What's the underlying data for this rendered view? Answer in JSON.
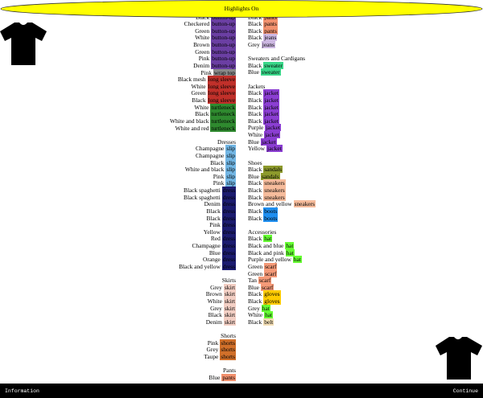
{
  "toggle": "Highlights On",
  "highlight_colors": {
    "button-up": "#6b3fa3",
    "wrap top": "#8a8a8a",
    "long sleeve": "#c0302a",
    "turtleneck": "#2f8a2f",
    "slip": "#72b6e4",
    "dress": "#1c1c70",
    "skirt": "#f3cfc4",
    "shorts": "#d1702a",
    "pants": "#f2916e",
    "jeans": "#cdb8e2",
    "sweater": "#3ad88a",
    "jacket": "#8b3ed2",
    "sandals": "#8d9a2c",
    "sneakers": "#f6bc9c",
    "boots": "#1f8ff0",
    "hat": "#66ff33",
    "scarf": "#f59a78",
    "gloves": "#ffcc00",
    "belt": "#f4dfb6"
  },
  "left_column": [
    {
      "items": [
        {
          "prefix": "Black",
          "highlight": "button-up"
        },
        {
          "prefix": "Checkered",
          "highlight": "button-up"
        },
        {
          "prefix": "Green",
          "highlight": "button-up"
        },
        {
          "prefix": "White",
          "highlight": "button-up"
        },
        {
          "prefix": "Brown",
          "highlight": "button-up"
        },
        {
          "prefix": "Green",
          "highlight": "button-up"
        },
        {
          "prefix": "Pink",
          "highlight": "button-up"
        },
        {
          "prefix": "Denim",
          "highlight": "button-up"
        },
        {
          "prefix": "Pink",
          "highlight": "wrap top"
        },
        {
          "prefix": "Black mesh",
          "highlight": "long sleeve"
        },
        {
          "prefix": "White",
          "highlight": "long sleeve"
        },
        {
          "prefix": "Green",
          "highlight": "long sleeve"
        },
        {
          "prefix": "Black",
          "highlight": "long sleeve"
        },
        {
          "prefix": "White",
          "highlight": "turtleneck"
        },
        {
          "prefix": "Black",
          "highlight": "turtleneck"
        },
        {
          "prefix": "White and black",
          "highlight": "turtleneck"
        },
        {
          "prefix": "White and red",
          "highlight": "turtleneck"
        }
      ]
    },
    {
      "header": "Dresses",
      "items": [
        {
          "prefix": "Champagne",
          "highlight": "slip"
        },
        {
          "prefix": "Champagne",
          "highlight": "slip"
        },
        {
          "prefix": "Black",
          "highlight": "slip"
        },
        {
          "prefix": "White and black",
          "highlight": "slip"
        },
        {
          "prefix": "Pink",
          "highlight": "slip"
        },
        {
          "prefix": "Pink",
          "highlight": "slip"
        },
        {
          "prefix": "Black spaghetti",
          "highlight": "dress"
        },
        {
          "prefix": "Black spaghetti",
          "highlight": "dress"
        },
        {
          "prefix": "Denim",
          "highlight": "dress"
        },
        {
          "prefix": "Black",
          "highlight": "dress"
        },
        {
          "prefix": "Black",
          "highlight": "dress"
        },
        {
          "prefix": "Pink",
          "highlight": "dress"
        },
        {
          "prefix": "Yellow",
          "highlight": "dress"
        },
        {
          "prefix": "Red",
          "highlight": "dress"
        },
        {
          "prefix": "Champagne",
          "highlight": "dress"
        },
        {
          "prefix": "Blue",
          "highlight": "dress"
        },
        {
          "prefix": "Orange",
          "highlight": "dress"
        },
        {
          "prefix": "Black and yellow",
          "highlight": "dress"
        }
      ]
    },
    {
      "header": "Skirts",
      "items": [
        {
          "prefix": "Grey",
          "highlight": "skirt"
        },
        {
          "prefix": "Brown",
          "highlight": "skirt"
        },
        {
          "prefix": "White",
          "highlight": "skirt"
        },
        {
          "prefix": "Grey",
          "highlight": "skirt"
        },
        {
          "prefix": "Black",
          "highlight": "skirt"
        },
        {
          "prefix": "Denim",
          "highlight": "skirt"
        }
      ]
    },
    {
      "header": "Shorts",
      "items": [
        {
          "prefix": "Pink",
          "highlight": "shorts"
        },
        {
          "prefix": "Grey",
          "highlight": "shorts"
        },
        {
          "prefix": "Taupe",
          "highlight": "shorts"
        }
      ]
    },
    {
      "header": "Pants",
      "items": [
        {
          "prefix": "Blue",
          "highlight": "pants"
        }
      ]
    }
  ],
  "right_column": [
    {
      "items": [
        {
          "prefix": "Black",
          "highlight": "pants"
        },
        {
          "prefix": "Black",
          "highlight": "pants"
        },
        {
          "prefix": "Black",
          "highlight": "pants"
        },
        {
          "prefix": "Black",
          "highlight": "jeans"
        },
        {
          "prefix": "Grey",
          "highlight": "jeans"
        }
      ]
    },
    {
      "header": "Sweaters and Cardigans",
      "items": [
        {
          "prefix": "Black",
          "highlight": "sweater"
        },
        {
          "prefix": "Blue",
          "highlight": "sweater"
        }
      ]
    },
    {
      "header": "Jackets",
      "items": [
        {
          "prefix": "Black",
          "highlight": "jacket"
        },
        {
          "prefix": "Black",
          "highlight": "jacket"
        },
        {
          "prefix": "Black",
          "highlight": "jacket"
        },
        {
          "prefix": "Black",
          "highlight": "jacket"
        },
        {
          "prefix": "Black",
          "highlight": "jacket"
        },
        {
          "prefix": "Purple",
          "highlight": "jacket"
        },
        {
          "prefix": "White",
          "highlight": "jacket"
        },
        {
          "prefix": "Blue",
          "highlight": "jacket"
        },
        {
          "prefix": "Yellow",
          "highlight": "jacket"
        }
      ]
    },
    {
      "header": "Shoes",
      "items": [
        {
          "prefix": "Black",
          "highlight": "sandals"
        },
        {
          "prefix": "Blue",
          "highlight": "sandals"
        },
        {
          "prefix": "Black",
          "highlight": "sneakers"
        },
        {
          "prefix": "Black",
          "highlight": "sneakers"
        },
        {
          "prefix": "Black",
          "highlight": "sneakers"
        },
        {
          "prefix": "Brown and yellow",
          "highlight": "sneakers"
        },
        {
          "prefix": "Black",
          "highlight": "boots"
        },
        {
          "prefix": "Black",
          "highlight": "boots"
        }
      ]
    },
    {
      "header": "Accessories",
      "items": [
        {
          "prefix": "Black",
          "highlight": "hat"
        },
        {
          "prefix": "Black and blue",
          "highlight": "hat"
        },
        {
          "prefix": "Black and pink",
          "highlight": "hat"
        },
        {
          "prefix": "Purple and yellow",
          "highlight": "hat"
        },
        {
          "prefix": "Green",
          "highlight": "scarf"
        },
        {
          "prefix": "Green",
          "highlight": "scarf"
        },
        {
          "prefix": "Tan",
          "highlight": "scarf"
        },
        {
          "prefix": "Blue",
          "highlight": "scarf"
        },
        {
          "prefix": "Black",
          "highlight": "gloves"
        },
        {
          "prefix": "Black",
          "highlight": "gloves"
        },
        {
          "prefix": "Grey",
          "highlight": "hat"
        },
        {
          "prefix": "White",
          "highlight": "hat"
        },
        {
          "prefix": "Black",
          "highlight": "belt"
        }
      ]
    }
  ],
  "footer": {
    "left": "Information",
    "right": "Continue"
  }
}
